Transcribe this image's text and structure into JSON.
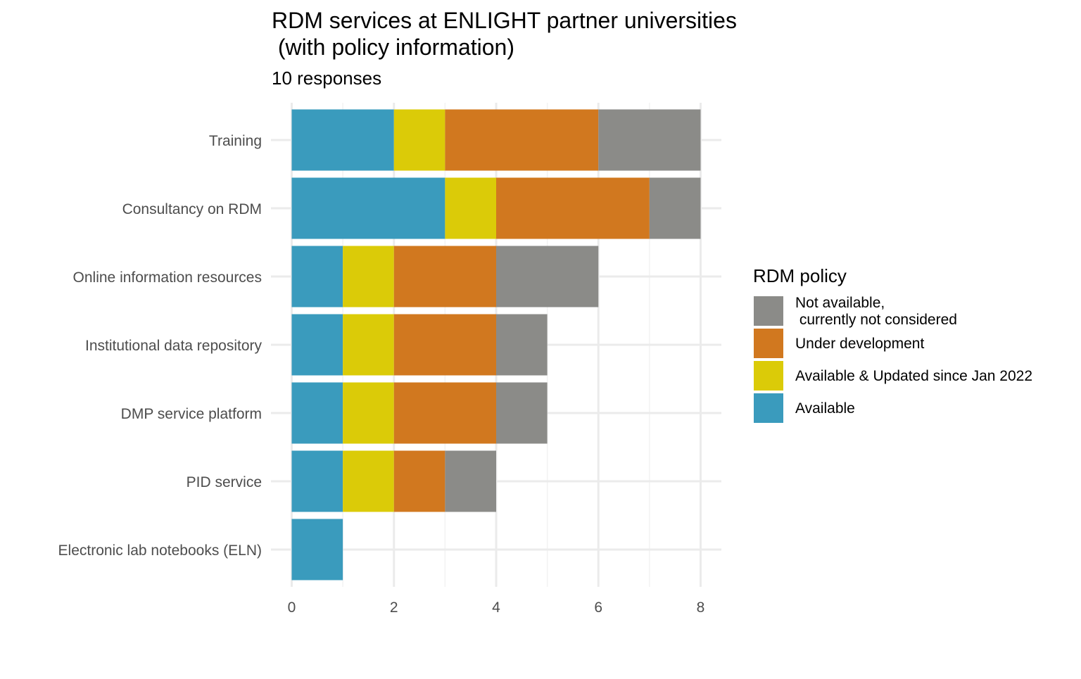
{
  "chart_data": {
    "type": "bar",
    "orientation": "horizontal",
    "stacked": true,
    "title_lines": [
      "RDM services at ENLIGHT partner universities",
      " (with policy information)"
    ],
    "subtitle": "10 responses",
    "xlabel": "",
    "ylabel": "",
    "xlim": [
      0,
      8.4
    ],
    "x_ticks": [
      0,
      2,
      4,
      6,
      8
    ],
    "x_tick_labels": [
      "0",
      "2",
      "4",
      "6",
      "8"
    ],
    "grid": true,
    "legend_placement": "right",
    "categories": [
      "Training",
      "Consultancy on RDM",
      "Online information resources",
      "Institutional data repository",
      "DMP service platform",
      "PID service",
      "Electronic lab notebooks (ELN)"
    ],
    "series": [
      {
        "name": "Available",
        "color": "#3A9BBD",
        "values": [
          2,
          3,
          1,
          1,
          1,
          1,
          1
        ]
      },
      {
        "name": "Available & Updated since Jan 2022",
        "color": "#DBCB08",
        "values": [
          1,
          1,
          1,
          1,
          1,
          1,
          0
        ]
      },
      {
        "name": "Under development",
        "color": "#D1781F",
        "values": [
          3,
          3,
          2,
          2,
          2,
          1,
          0
        ]
      },
      {
        "name": "Not available,\n currently not considered",
        "color": "#8B8B88",
        "values": [
          2,
          1,
          2,
          1,
          1,
          1,
          0
        ]
      }
    ],
    "legend": {
      "title": "RDM policy",
      "entries": [
        {
          "label_lines": [
            "Not available,",
            " currently not considered"
          ],
          "color": "#8B8B88"
        },
        {
          "label_lines": [
            "Under development"
          ],
          "color": "#D1781F"
        },
        {
          "label_lines": [
            "Available & Updated since Jan 2022"
          ],
          "color": "#DBCB08"
        },
        {
          "label_lines": [
            "Available"
          ],
          "color": "#3A9BBD"
        }
      ]
    }
  }
}
